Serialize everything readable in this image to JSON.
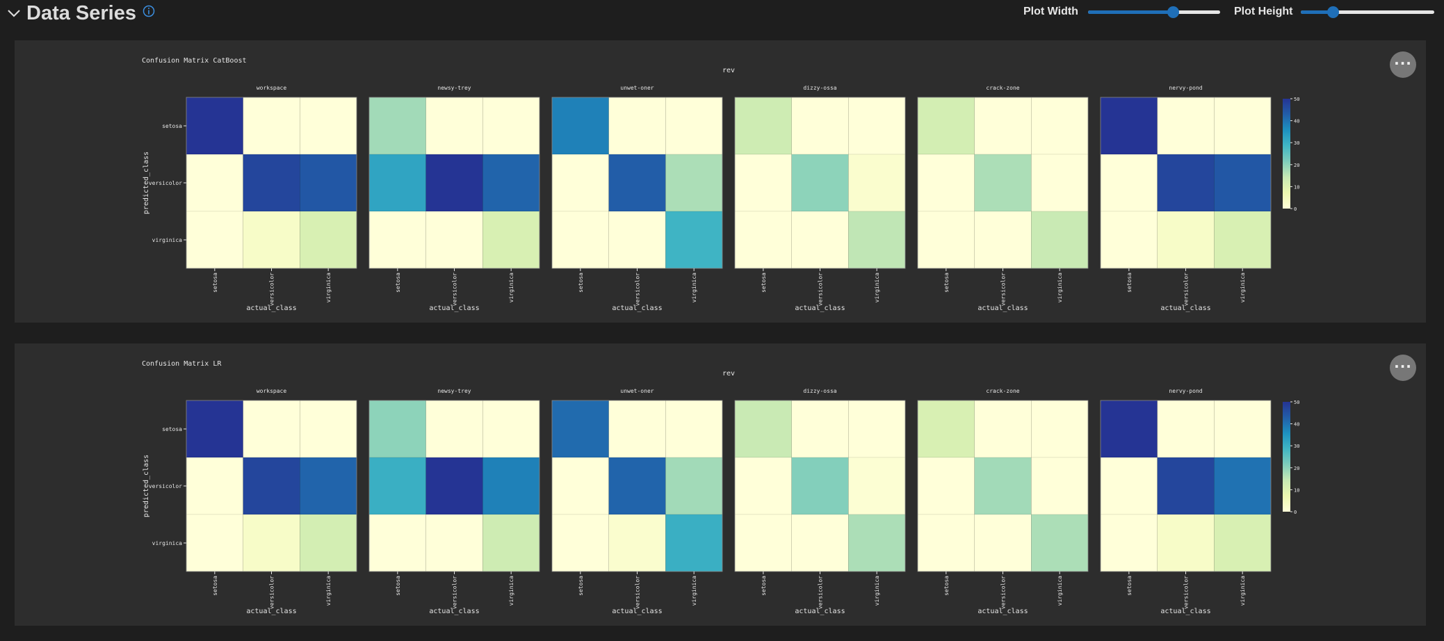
{
  "page": {
    "title": "Data Series",
    "plot_width_label": "Plot Width",
    "plot_height_label": "Plot Height",
    "plot_width_value": 0.64,
    "plot_height_value": 0.24,
    "menu_label": "···"
  },
  "colors": {
    "background": "#1e1e1e",
    "panel": "#2d2d2d",
    "slider": "#1f6fb8",
    "colorscale": [
      "#ffffd9",
      "#edf8b1",
      "#c7e9b4",
      "#7fcdbb",
      "#41b6c4",
      "#1d91c0",
      "#225ea8",
      "#253494"
    ]
  },
  "chart_data": [
    {
      "type": "heatmap",
      "title": "Confusion Matrix CatBoost",
      "facet_label": "rev",
      "xlabel": "actual_class",
      "ylabel": "predicted_class",
      "classes": [
        "setosa",
        "versicolor",
        "virginica"
      ],
      "colorbar_ticks": [
        0,
        10,
        20,
        30,
        40,
        50
      ],
      "zmin": 0,
      "zmax": 50,
      "facets": [
        {
          "name": "workspace",
          "matrix": [
            [
              50,
              0,
              0
            ],
            [
              0,
              47,
              44
            ],
            [
              0,
              3,
              11
            ]
          ]
        },
        {
          "name": "newsy-trey",
          "matrix": [
            [
              18,
              0,
              0
            ],
            [
              32,
              50,
              42
            ],
            [
              0,
              0,
              11
            ]
          ]
        },
        {
          "name": "unwet-oner",
          "matrix": [
            [
              38,
              0,
              0
            ],
            [
              0,
              43,
              17
            ],
            [
              0,
              0,
              29
            ]
          ]
        },
        {
          "name": "dizzy-ossa",
          "matrix": [
            [
              13,
              0,
              0
            ],
            [
              0,
              20,
              2
            ],
            [
              0,
              0,
              15
            ]
          ]
        },
        {
          "name": "crack-zone",
          "matrix": [
            [
              12,
              0,
              0
            ],
            [
              0,
              17,
              0
            ],
            [
              0,
              0,
              14
            ]
          ]
        },
        {
          "name": "nervy-pond",
          "matrix": [
            [
              50,
              0,
              0
            ],
            [
              0,
              47,
              44
            ],
            [
              0,
              3,
              11
            ]
          ]
        }
      ]
    },
    {
      "type": "heatmap",
      "title": "Confusion Matrix LR",
      "facet_label": "rev",
      "xlabel": "actual_class",
      "ylabel": "predicted_class",
      "classes": [
        "setosa",
        "versicolor",
        "virginica"
      ],
      "colorbar_ticks": [
        0,
        10,
        20,
        30,
        40,
        50
      ],
      "zmin": 0,
      "zmax": 50,
      "facets": [
        {
          "name": "workspace",
          "matrix": [
            [
              50,
              0,
              0
            ],
            [
              0,
              47,
              42
            ],
            [
              0,
              3,
              12
            ]
          ]
        },
        {
          "name": "newsy-trey",
          "matrix": [
            [
              20,
              0,
              0
            ],
            [
              30,
              50,
              38
            ],
            [
              0,
              0,
              13
            ]
          ]
        },
        {
          "name": "unwet-oner",
          "matrix": [
            [
              41,
              0,
              0
            ],
            [
              0,
              42,
              18
            ],
            [
              0,
              2,
              30
            ]
          ]
        },
        {
          "name": "dizzy-ossa",
          "matrix": [
            [
              14,
              0,
              0
            ],
            [
              0,
              21,
              1
            ],
            [
              0,
              0,
              17
            ]
          ]
        },
        {
          "name": "crack-zone",
          "matrix": [
            [
              11,
              0,
              0
            ],
            [
              0,
              18,
              0
            ],
            [
              0,
              0,
              17
            ]
          ]
        },
        {
          "name": "nervy-pond",
          "matrix": [
            [
              50,
              0,
              0
            ],
            [
              0,
              47,
              40
            ],
            [
              0,
              3,
              11
            ]
          ]
        }
      ]
    }
  ]
}
